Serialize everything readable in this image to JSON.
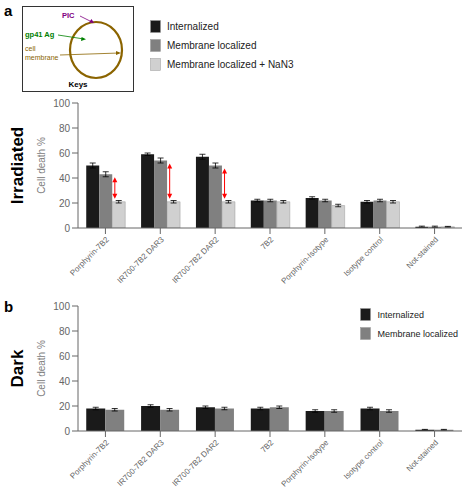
{
  "chart_data": [
    {
      "type": "diagram",
      "title": "Keys",
      "annotations": [
        {
          "text": "PIC",
          "color": "purple"
        },
        {
          "text": "gp41 Ag",
          "color": "green"
        },
        {
          "text": "cell",
          "color": "#8B6400"
        },
        {
          "text": "membrane",
          "color": "#8B6400"
        }
      ]
    },
    {
      "type": "bar",
      "title": "Irradiated",
      "ylabel": "Cell death %",
      "categories": [
        "Porphyrin-7B2",
        "IR700-7B2 DAR3",
        "IR700-7B2 DAR2",
        "7B2",
        "Porphyrin-Isotype",
        "Isotype control",
        "Not-stained"
      ],
      "series": [
        {
          "name": "Internalized",
          "color": "#1a1a1a",
          "values": [
            50,
            59,
            57,
            22,
            24,
            21,
            1
          ],
          "errors": [
            2,
            1,
            2,
            1,
            1,
            1,
            0.5
          ]
        },
        {
          "name": "Membrane localized",
          "color": "#808080",
          "values": [
            43,
            54,
            50,
            22,
            22,
            22,
            1
          ],
          "errors": [
            2,
            2,
            2,
            1,
            1,
            1,
            0.5
          ]
        },
        {
          "name": "Membrane localized + NaN3",
          "color": "#d0d0d0",
          "values": [
            21,
            21,
            21,
            21,
            18,
            21,
            1
          ],
          "errors": [
            1,
            1,
            1,
            1,
            1,
            1,
            0.3
          ]
        }
      ],
      "ylim": [
        0,
        100
      ],
      "yticks": [
        0,
        20,
        40,
        60,
        80,
        100
      ],
      "grid": false,
      "legend": "top",
      "annotations": [
        {
          "text": "a"
        },
        {
          "type": "arrow",
          "category": "Porphyrin-7B2",
          "from": "Membrane localized",
          "to": "Membrane localized + NaN3",
          "color": "red"
        },
        {
          "type": "arrow",
          "category": "IR700-7B2 DAR3",
          "from": "Membrane localized",
          "to": "Membrane localized + NaN3",
          "color": "red"
        },
        {
          "type": "arrow",
          "category": "IR700-7B2 DAR2",
          "from": "Membrane localized",
          "to": "Membrane localized + NaN3",
          "color": "red"
        }
      ]
    },
    {
      "type": "bar",
      "title": "Dark",
      "ylabel": "Cell death %",
      "categories": [
        "Porphyrin-7B2",
        "IR700-7B2 DAR3",
        "IR700-7B2 DAR2",
        "7B2",
        "Porphyrin-Isotype",
        "Isotype control",
        "Not-stained"
      ],
      "series": [
        {
          "name": "Internalized",
          "color": "#1a1a1a",
          "values": [
            18,
            20,
            19,
            18,
            16,
            18,
            1
          ],
          "errors": [
            1,
            1,
            1,
            1,
            1,
            1,
            0.3
          ]
        },
        {
          "name": "Membrane localized",
          "color": "#808080",
          "values": [
            17,
            17,
            18,
            19,
            16,
            16,
            1
          ],
          "errors": [
            1,
            1,
            1,
            1,
            1,
            1,
            0.3
          ]
        }
      ],
      "ylim": [
        0,
        100
      ],
      "yticks": [
        0,
        20,
        40,
        60,
        80,
        100
      ],
      "grid": false,
      "legend": "upper right",
      "annotations": [
        {
          "text": "b"
        }
      ]
    }
  ]
}
